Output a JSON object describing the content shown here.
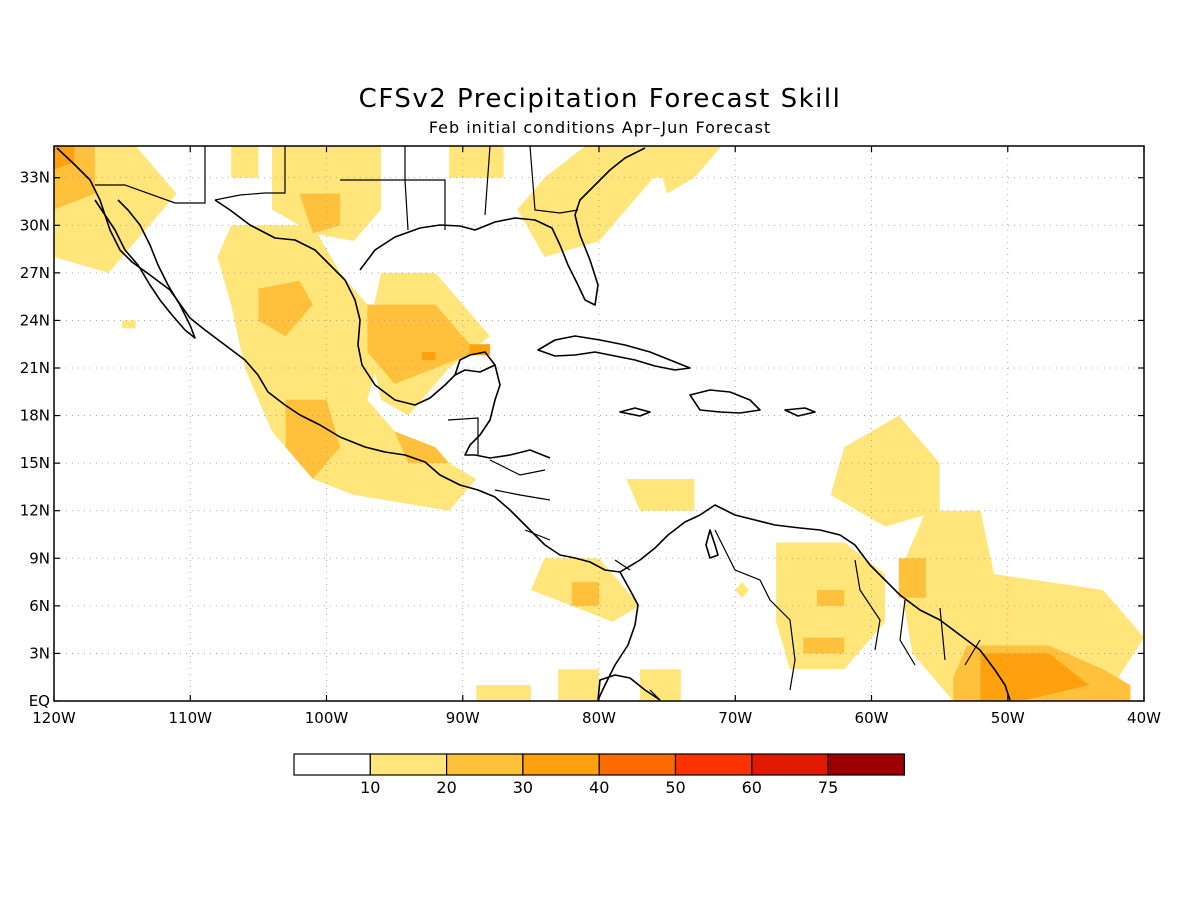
{
  "title": "CFSv2 Precipitation Forecast Skill",
  "subtitle": "Feb initial conditions  Apr–Jun Forecast",
  "chart_data": {
    "type": "heatmap",
    "domain": {
      "lon": [
        -120,
        -40
      ],
      "lat": [
        0,
        35
      ]
    },
    "lat_ticks": [
      {
        "value": 33,
        "label": "33N"
      },
      {
        "value": 30,
        "label": "30N"
      },
      {
        "value": 27,
        "label": "27N"
      },
      {
        "value": 24,
        "label": "24N"
      },
      {
        "value": 21,
        "label": "21N"
      },
      {
        "value": 18,
        "label": "18N"
      },
      {
        "value": 15,
        "label": "15N"
      },
      {
        "value": 12,
        "label": "12N"
      },
      {
        "value": 9,
        "label": "9N"
      },
      {
        "value": 6,
        "label": "6N"
      },
      {
        "value": 3,
        "label": "3N"
      },
      {
        "value": 0,
        "label": "EQ"
      }
    ],
    "lon_ticks": [
      {
        "value": -120,
        "label": "120W"
      },
      {
        "value": -110,
        "label": "110W"
      },
      {
        "value": -100,
        "label": "100W"
      },
      {
        "value": -90,
        "label": "90W"
      },
      {
        "value": -80,
        "label": "80W"
      },
      {
        "value": -70,
        "label": "70W"
      },
      {
        "value": -60,
        "label": "60W"
      },
      {
        "value": -50,
        "label": "50W"
      },
      {
        "value": -40,
        "label": "40W"
      }
    ],
    "grid": true,
    "colorbar": {
      "labels": [
        "10",
        "20",
        "30",
        "40",
        "50",
        "60",
        "75"
      ],
      "colors": [
        "#ffffff",
        "#ffe57a",
        "#ffc03c",
        "#ffa10e",
        "#ff6a00",
        "#ff3300",
        "#e01a00",
        "#9c0000"
      ]
    },
    "regions": [
      {
        "level": 1,
        "poly": [
          [
            -120,
            35
          ],
          [
            -114,
            35
          ],
          [
            -111,
            32
          ],
          [
            -114,
            29
          ],
          [
            -116,
            27
          ],
          [
            -120,
            28
          ]
        ]
      },
      {
        "level": 2,
        "poly": [
          [
            -120,
            35
          ],
          [
            -117,
            35
          ],
          [
            -117,
            32
          ],
          [
            -120,
            31
          ]
        ]
      },
      {
        "level": 3,
        "poly": [
          [
            -120,
            35
          ],
          [
            -118.5,
            35
          ],
          [
            -118.5,
            34
          ],
          [
            -120,
            33.5
          ]
        ]
      },
      {
        "level": 1,
        "poly": [
          [
            -115,
            24
          ],
          [
            -114,
            24
          ],
          [
            -114,
            23.5
          ],
          [
            -115,
            23.5
          ]
        ]
      },
      {
        "level": 1,
        "poly": [
          [
            -107,
            35
          ],
          [
            -105,
            35
          ],
          [
            -105,
            33
          ],
          [
            -107,
            33
          ]
        ]
      },
      {
        "level": 1,
        "poly": [
          [
            -107,
            30
          ],
          [
            -101,
            30
          ],
          [
            -99,
            27
          ],
          [
            -97,
            25
          ],
          [
            -96,
            22
          ],
          [
            -97,
            19
          ],
          [
            -95,
            17
          ],
          [
            -93,
            16
          ],
          [
            -91,
            15
          ],
          [
            -89,
            14
          ],
          [
            -91,
            12
          ],
          [
            -98,
            13
          ],
          [
            -101,
            14
          ],
          [
            -104,
            17
          ],
          [
            -106,
            21
          ],
          [
            -107,
            25
          ],
          [
            -108,
            28
          ]
        ]
      },
      {
        "level": 1,
        "poly": [
          [
            -104,
            35
          ],
          [
            -96,
            35
          ],
          [
            -96,
            31
          ],
          [
            -98,
            29
          ],
          [
            -101,
            29.5
          ],
          [
            -104,
            31
          ]
        ]
      },
      {
        "level": 1,
        "poly": [
          [
            -96,
            27
          ],
          [
            -92,
            27
          ],
          [
            -88,
            23
          ],
          [
            -91,
            21
          ],
          [
            -94,
            18
          ],
          [
            -96,
            19
          ],
          [
            -97,
            23
          ]
        ]
      },
      {
        "level": 1,
        "poly": [
          [
            -91,
            35
          ],
          [
            -87,
            35
          ],
          [
            -87,
            33
          ],
          [
            -91,
            33
          ]
        ]
      },
      {
        "level": 1,
        "poly": [
          [
            -81,
            35
          ],
          [
            -74,
            35
          ],
          [
            -77,
            32
          ],
          [
            -80,
            29
          ],
          [
            -84,
            28
          ],
          [
            -86,
            31
          ],
          [
            -84,
            33
          ]
        ]
      },
      {
        "level": 1,
        "poly": [
          [
            -79,
            35
          ],
          [
            -73,
            35
          ],
          [
            -75,
            33
          ],
          [
            -78,
            33
          ]
        ]
      },
      {
        "level": 2,
        "poly": [
          [
            -105,
            26
          ],
          [
            -102,
            26.5
          ],
          [
            -101,
            25
          ],
          [
            -103,
            23
          ],
          [
            -105,
            24
          ]
        ]
      },
      {
        "level": 2,
        "poly": [
          [
            -102,
            32
          ],
          [
            -99,
            32
          ],
          [
            -99,
            30
          ],
          [
            -101,
            29.5
          ]
        ]
      },
      {
        "level": 2,
        "poly": [
          [
            -97,
            25
          ],
          [
            -92,
            25
          ],
          [
            -89,
            22
          ],
          [
            -92,
            21
          ],
          [
            -95,
            20
          ],
          [
            -97,
            22
          ]
        ]
      },
      {
        "level": 2,
        "poly": [
          [
            -103,
            19
          ],
          [
            -100,
            19
          ],
          [
            -99,
            16
          ],
          [
            -101,
            14
          ],
          [
            -103,
            16
          ]
        ]
      },
      {
        "level": 2,
        "poly": [
          [
            -95,
            17
          ],
          [
            -92,
            16
          ],
          [
            -91,
            15
          ],
          [
            -94,
            15
          ]
        ]
      },
      {
        "level": 3,
        "poly": [
          [
            -93,
            22
          ],
          [
            -92,
            22
          ],
          [
            -92,
            21.5
          ],
          [
            -93,
            21.5
          ]
        ]
      },
      {
        "level": 3,
        "poly": [
          [
            -89.5,
            22.5
          ],
          [
            -88,
            22.5
          ],
          [
            -88,
            21.8
          ],
          [
            -89.5,
            21.8
          ]
        ]
      },
      {
        "level": 1,
        "poly": [
          [
            -76,
            35
          ],
          [
            -71,
            35
          ],
          [
            -73,
            33
          ],
          [
            -75,
            32
          ]
        ]
      },
      {
        "level": 1,
        "poly": [
          [
            -84,
            9
          ],
          [
            -80,
            9
          ],
          [
            -77,
            6
          ],
          [
            -79,
            5
          ],
          [
            -82,
            6
          ],
          [
            -85,
            7
          ]
        ]
      },
      {
        "level": 2,
        "poly": [
          [
            -82,
            7.5
          ],
          [
            -80,
            7.5
          ],
          [
            -80,
            6
          ],
          [
            -82,
            6
          ]
        ]
      },
      {
        "level": 1,
        "poly": [
          [
            -78,
            14
          ],
          [
            -73,
            14
          ],
          [
            -73,
            12
          ],
          [
            -77,
            12
          ]
        ]
      },
      {
        "level": 1,
        "poly": [
          [
            -83,
            2
          ],
          [
            -80,
            2
          ],
          [
            -80,
            0
          ],
          [
            -83,
            0
          ]
        ]
      },
      {
        "level": 1,
        "poly": [
          [
            -77,
            2
          ],
          [
            -74,
            2
          ],
          [
            -74,
            0
          ],
          [
            -77,
            0
          ]
        ]
      },
      {
        "level": 1,
        "poly": [
          [
            -89,
            1
          ],
          [
            -85,
            1
          ],
          [
            -85,
            0
          ],
          [
            -89,
            0
          ]
        ]
      },
      {
        "level": 1,
        "poly": [
          [
            -70,
            7
          ],
          [
            -69.5,
            7.5
          ],
          [
            -69,
            7
          ],
          [
            -69.5,
            6.5
          ]
        ]
      },
      {
        "level": 1,
        "poly": [
          [
            -67,
            10
          ],
          [
            -62,
            10
          ],
          [
            -59,
            8
          ],
          [
            -59,
            5
          ],
          [
            -62,
            2
          ],
          [
            -66,
            2
          ],
          [
            -67,
            5
          ]
        ]
      },
      {
        "level": 2,
        "poly": [
          [
            -64,
            7
          ],
          [
            -62,
            7
          ],
          [
            -62,
            6
          ],
          [
            -64,
            6
          ]
        ]
      },
      {
        "level": 2,
        "poly": [
          [
            -65,
            4
          ],
          [
            -62,
            4
          ],
          [
            -62,
            3
          ],
          [
            -65,
            3
          ]
        ]
      },
      {
        "level": 1,
        "poly": [
          [
            -62,
            16
          ],
          [
            -58,
            18
          ],
          [
            -55,
            15
          ],
          [
            -55,
            12
          ],
          [
            -59,
            11
          ],
          [
            -63,
            13
          ]
        ]
      },
      {
        "level": 1,
        "poly": [
          [
            -56,
            12
          ],
          [
            -52,
            12
          ],
          [
            -51,
            8
          ],
          [
            -43,
            7
          ],
          [
            -40,
            4
          ],
          [
            -43,
            0
          ],
          [
            -54,
            0
          ],
          [
            -57,
            3
          ],
          [
            -58,
            8
          ]
        ]
      },
      {
        "level": 2,
        "poly": [
          [
            -58,
            9
          ],
          [
            -56,
            9
          ],
          [
            -56,
            6.5
          ],
          [
            -58,
            6.5
          ]
        ]
      },
      {
        "level": 2,
        "poly": [
          [
            -53,
            3.5
          ],
          [
            -47,
            3.5
          ],
          [
            -43,
            2
          ],
          [
            -41,
            1
          ],
          [
            -41,
            0
          ],
          [
            -54,
            0
          ],
          [
            -54,
            1.5
          ]
        ]
      },
      {
        "level": 3,
        "poly": [
          [
            -52,
            3
          ],
          [
            -47,
            3
          ],
          [
            -44,
            1
          ],
          [
            -49,
            0
          ],
          [
            -52,
            0
          ]
        ]
      }
    ]
  }
}
